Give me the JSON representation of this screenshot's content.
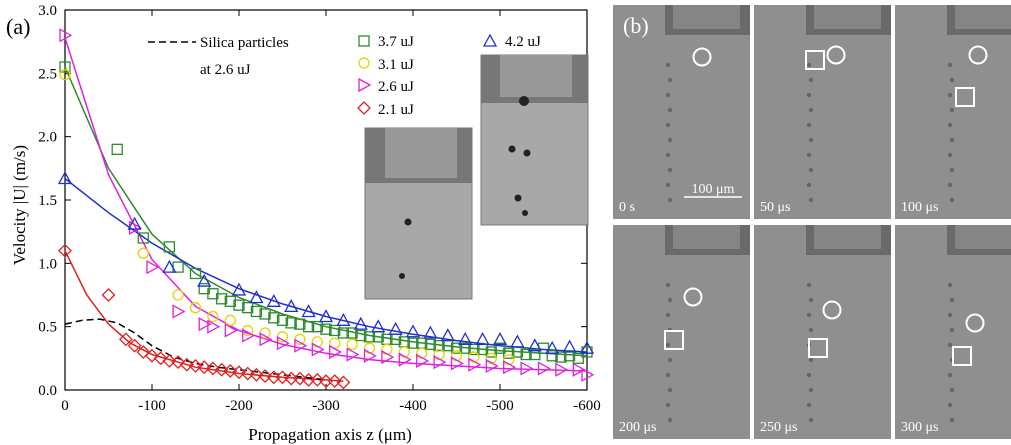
{
  "chart_data": {
    "type": "scatter",
    "panel_label": "(a)",
    "xlabel": "Propagation axis z (μm)",
    "ylabel": "Velocity |U| (m/s)",
    "xlim": [
      0,
      -600
    ],
    "ylim": [
      0.0,
      3.0
    ],
    "x_ticks": [
      "0",
      "-100",
      "-200",
      "-300",
      "-400",
      "-500",
      "-600"
    ],
    "y_ticks": [
      "0.0",
      "0.5",
      "1.0",
      "1.5",
      "2.0",
      "2.5",
      "3.0"
    ],
    "grid": false,
    "legend_position": "top",
    "series": [
      {
        "name": "3.7 uJ",
        "marker": "square",
        "color": "#2e8b2e",
        "points": [
          [
            0,
            2.55
          ],
          [
            -60,
            1.9
          ],
          [
            -90,
            1.2
          ],
          [
            -120,
            1.13
          ],
          [
            -130,
            0.97
          ],
          [
            -150,
            0.92
          ],
          [
            -160,
            0.8
          ],
          [
            -170,
            0.76
          ],
          [
            -180,
            0.72
          ],
          [
            -190,
            0.7
          ],
          [
            -200,
            0.67
          ],
          [
            -210,
            0.65
          ],
          [
            -220,
            0.62
          ],
          [
            -230,
            0.6
          ],
          [
            -240,
            0.57
          ],
          [
            -250,
            0.55
          ],
          [
            -260,
            0.53
          ],
          [
            -270,
            0.52
          ],
          [
            -280,
            0.5
          ],
          [
            -290,
            0.5
          ],
          [
            -300,
            0.48
          ],
          [
            -310,
            0.47
          ],
          [
            -320,
            0.45
          ],
          [
            -330,
            0.45
          ],
          [
            -340,
            0.43
          ],
          [
            -350,
            0.42
          ],
          [
            -360,
            0.42
          ],
          [
            -370,
            0.4
          ],
          [
            -380,
            0.4
          ],
          [
            -390,
            0.38
          ],
          [
            -400,
            0.37
          ],
          [
            -410,
            0.37
          ],
          [
            -420,
            0.36
          ],
          [
            -430,
            0.35
          ],
          [
            -440,
            0.35
          ],
          [
            -450,
            0.33
          ],
          [
            -460,
            0.33
          ],
          [
            -470,
            0.32
          ],
          [
            -480,
            0.32
          ],
          [
            -490,
            0.3
          ],
          [
            -500,
            0.33
          ],
          [
            -510,
            0.29
          ],
          [
            -520,
            0.3
          ],
          [
            -530,
            0.28
          ],
          [
            -540,
            0.28
          ],
          [
            -550,
            0.33
          ],
          [
            -560,
            0.27
          ],
          [
            -570,
            0.26
          ],
          [
            -580,
            0.27
          ],
          [
            -590,
            0.25
          ],
          [
            -600,
            0.3
          ]
        ],
        "fit": [
          [
            0,
            2.55
          ],
          [
            -50,
            1.75
          ],
          [
            -100,
            1.23
          ],
          [
            -150,
            0.92
          ],
          [
            -200,
            0.73
          ],
          [
            -250,
            0.6
          ],
          [
            -300,
            0.5
          ],
          [
            -350,
            0.43
          ],
          [
            -400,
            0.38
          ],
          [
            -450,
            0.34
          ],
          [
            -500,
            0.31
          ],
          [
            -550,
            0.29
          ],
          [
            -600,
            0.27
          ]
        ]
      },
      {
        "name": "3.1 uJ",
        "marker": "circle",
        "color": "#e6d200",
        "points": [
          [
            0,
            2.49
          ],
          [
            -90,
            1.08
          ],
          [
            -130,
            0.75
          ],
          [
            -150,
            0.65
          ],
          [
            -170,
            0.58
          ],
          [
            -190,
            0.55
          ],
          [
            -210,
            0.47
          ],
          [
            -230,
            0.45
          ],
          [
            -250,
            0.42
          ],
          [
            -270,
            0.4
          ],
          [
            -290,
            0.38
          ],
          [
            -310,
            0.37
          ],
          [
            -330,
            0.36
          ],
          [
            -350,
            0.33
          ],
          [
            -370,
            0.32
          ],
          [
            -390,
            0.3
          ],
          [
            -410,
            0.29
          ],
          [
            -430,
            0.28
          ],
          [
            -450,
            0.27
          ],
          [
            -470,
            0.26
          ],
          [
            -490,
            0.25
          ],
          [
            -510,
            0.24
          ]
        ],
        "fit": []
      },
      {
        "name": "2.6 uJ",
        "marker": "triangle-right",
        "color": "#e020e0",
        "points": [
          [
            0,
            2.8
          ],
          [
            -80,
            1.28
          ],
          [
            -100,
            0.97
          ],
          [
            -130,
            0.62
          ],
          [
            -160,
            0.52
          ],
          [
            -170,
            0.5
          ],
          [
            -190,
            0.47
          ],
          [
            -210,
            0.43
          ],
          [
            -230,
            0.4
          ],
          [
            -250,
            0.37
          ],
          [
            -270,
            0.35
          ],
          [
            -290,
            0.32
          ],
          [
            -310,
            0.3
          ],
          [
            -330,
            0.28
          ],
          [
            -350,
            0.27
          ],
          [
            -370,
            0.26
          ],
          [
            -390,
            0.24
          ],
          [
            -410,
            0.23
          ],
          [
            -430,
            0.22
          ],
          [
            -450,
            0.21
          ],
          [
            -470,
            0.2
          ],
          [
            -490,
            0.19
          ],
          [
            -510,
            0.18
          ],
          [
            -530,
            0.17
          ],
          [
            -550,
            0.17
          ],
          [
            -570,
            0.16
          ],
          [
            -590,
            0.16
          ],
          [
            -600,
            0.12
          ]
        ],
        "fit": [
          [
            0,
            2.78
          ],
          [
            -50,
            1.7
          ],
          [
            -100,
            1.03
          ],
          [
            -150,
            0.66
          ],
          [
            -200,
            0.47
          ],
          [
            -250,
            0.36
          ],
          [
            -300,
            0.29
          ],
          [
            -350,
            0.24
          ],
          [
            -400,
            0.21
          ],
          [
            -450,
            0.19
          ],
          [
            -500,
            0.17
          ],
          [
            -550,
            0.16
          ],
          [
            -600,
            0.15
          ]
        ]
      },
      {
        "name": "2.1 uJ",
        "marker": "diamond",
        "color": "#e02020",
        "points": [
          [
            0,
            1.1
          ],
          [
            -50,
            0.75
          ],
          [
            -70,
            0.4
          ],
          [
            -80,
            0.35
          ],
          [
            -90,
            0.3
          ],
          [
            -100,
            0.27
          ],
          [
            -110,
            0.25
          ],
          [
            -120,
            0.23
          ],
          [
            -130,
            0.22
          ],
          [
            -140,
            0.2
          ],
          [
            -150,
            0.19
          ],
          [
            -160,
            0.18
          ],
          [
            -170,
            0.17
          ],
          [
            -180,
            0.16
          ],
          [
            -190,
            0.15
          ],
          [
            -200,
            0.14
          ],
          [
            -210,
            0.13
          ],
          [
            -220,
            0.12
          ],
          [
            -230,
            0.11
          ],
          [
            -240,
            0.1
          ],
          [
            -250,
            0.1
          ],
          [
            -260,
            0.09
          ],
          [
            -270,
            0.09
          ],
          [
            -280,
            0.08
          ],
          [
            -290,
            0.08
          ],
          [
            -300,
            0.07
          ],
          [
            -310,
            0.07
          ],
          [
            -320,
            0.06
          ]
        ],
        "fit": [
          [
            0,
            1.1
          ],
          [
            -25,
            0.75
          ],
          [
            -50,
            0.52
          ],
          [
            -75,
            0.37
          ],
          [
            -100,
            0.28
          ],
          [
            -150,
            0.18
          ],
          [
            -200,
            0.13
          ],
          [
            -250,
            0.1
          ],
          [
            -300,
            0.08
          ],
          [
            -320,
            0.07
          ]
        ]
      },
      {
        "name": "4.2 uJ",
        "marker": "triangle-up",
        "color": "#2030d0",
        "points": [
          [
            0,
            1.67
          ],
          [
            -80,
            1.31
          ],
          [
            -120,
            0.97
          ],
          [
            -160,
            0.86
          ],
          [
            -200,
            0.79
          ],
          [
            -220,
            0.73
          ],
          [
            -240,
            0.7
          ],
          [
            -260,
            0.66
          ],
          [
            -280,
            0.62
          ],
          [
            -300,
            0.58
          ],
          [
            -320,
            0.55
          ],
          [
            -340,
            0.52
          ],
          [
            -360,
            0.5
          ],
          [
            -380,
            0.48
          ],
          [
            -400,
            0.46
          ],
          [
            -420,
            0.45
          ],
          [
            -440,
            0.43
          ],
          [
            -460,
            0.4
          ],
          [
            -480,
            0.4
          ],
          [
            -500,
            0.4
          ],
          [
            -520,
            0.38
          ],
          [
            -540,
            0.35
          ],
          [
            -560,
            0.33
          ],
          [
            -580,
            0.34
          ],
          [
            -600,
            0.33
          ]
        ],
        "fit": [
          [
            0,
            1.67
          ],
          [
            -50,
            1.4
          ],
          [
            -100,
            1.16
          ],
          [
            -150,
            0.96
          ],
          [
            -200,
            0.8
          ],
          [
            -250,
            0.68
          ],
          [
            -300,
            0.58
          ],
          [
            -350,
            0.5
          ],
          [
            -400,
            0.44
          ],
          [
            -450,
            0.39
          ],
          [
            -500,
            0.35
          ],
          [
            -550,
            0.32
          ],
          [
            -600,
            0.3
          ]
        ]
      },
      {
        "name": "Silica particles at 2.6 uJ",
        "marker": "none",
        "line": "dashed",
        "color": "#000000",
        "points": [],
        "fit": [
          [
            0,
            0.52
          ],
          [
            -20,
            0.55
          ],
          [
            -40,
            0.56
          ],
          [
            -60,
            0.53
          ],
          [
            -80,
            0.45
          ],
          [
            -100,
            0.35
          ],
          [
            -125,
            0.26
          ],
          [
            -150,
            0.21
          ],
          [
            -175,
            0.18
          ],
          [
            -200,
            0.16
          ],
          [
            -225,
            0.14
          ],
          [
            -250,
            0.12
          ],
          [
            -275,
            0.1
          ],
          [
            -300,
            0.08
          ]
        ]
      }
    ],
    "legend": {
      "silica_line1": "Silica particles",
      "silica_line2": "at 2.6 uJ",
      "entries": [
        "3.7 uJ",
        "3.1 uJ",
        "2.6 uJ",
        "2.1 uJ",
        "4.2 uJ"
      ]
    }
  },
  "panel_b": {
    "label": "(b)",
    "scale_bar": "100 μm",
    "frames": [
      "0 s",
      "50 μs",
      "100 μs",
      "200 μs",
      "250 μs",
      "300 μs"
    ]
  }
}
